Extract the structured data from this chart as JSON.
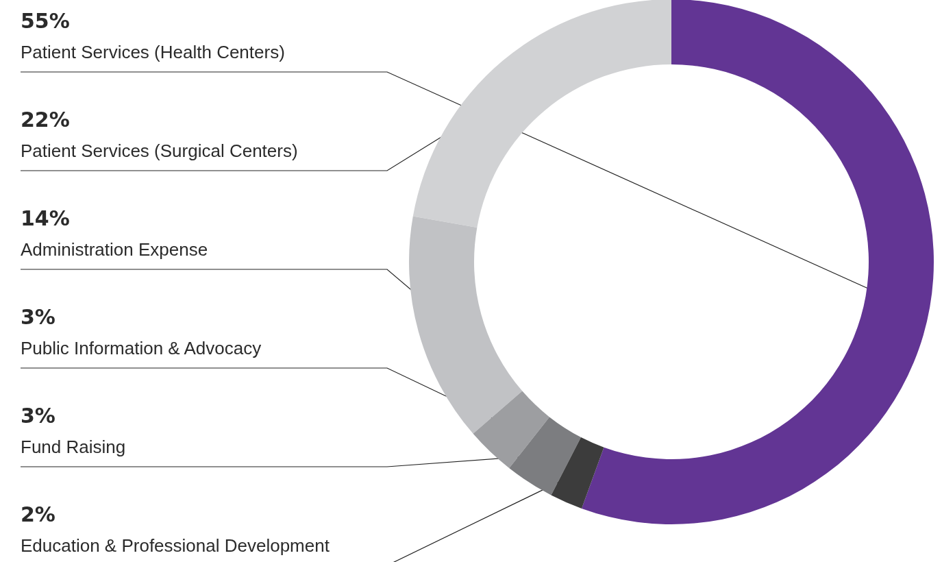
{
  "chart_data": {
    "type": "donut",
    "categories": [
      "Patient Services (Health Centers)",
      "Patient Services (Surgical Centers)",
      "Administration Expense",
      "Public Information & Advocacy",
      "Fund Raising",
      "Education & Professional Development"
    ],
    "values": [
      55,
      22,
      14,
      3,
      3,
      2
    ],
    "colors": [
      "#623594",
      "#d1d2d4",
      "#c1c2c5",
      "#9d9ea1",
      "#7c7d80",
      "#3c3c3c"
    ],
    "value_labels": [
      "55%",
      "22%",
      "14%",
      "3%",
      "3%",
      "2%"
    ],
    "legend": false
  }
}
